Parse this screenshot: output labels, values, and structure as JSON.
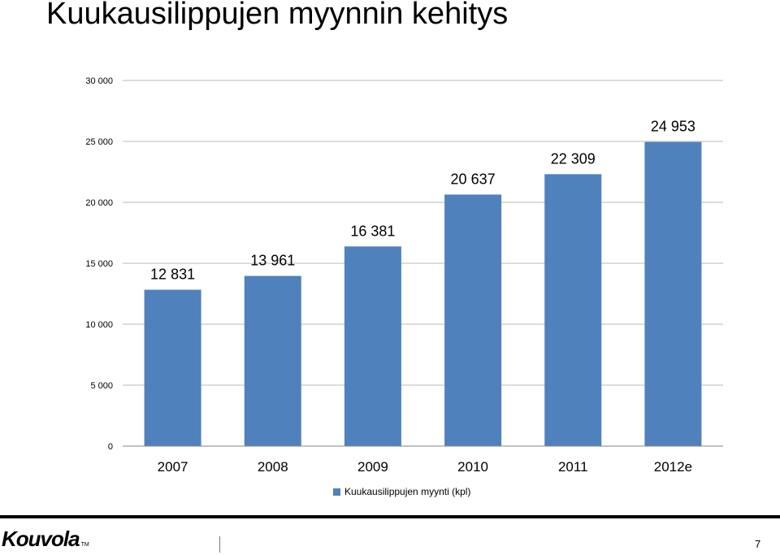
{
  "slide": {
    "title": "Kuukausilippujen myynnin kehitys",
    "page_number": "7",
    "logo_text": "Kouvola",
    "logo_tm": "TM"
  },
  "colors": {
    "bar": "#4f81bd",
    "grid": "#b9b9b9",
    "axis": "#868686",
    "footer_rule": "#000000"
  },
  "chart_data": {
    "type": "bar",
    "categories": [
      "2007",
      "2008",
      "2009",
      "2010",
      "2011",
      "2012e"
    ],
    "series": [
      {
        "name": "Kuukausilippujen myynti (kpl)",
        "values": [
          12831,
          13961,
          16381,
          20637,
          22309,
          24953
        ],
        "labels": [
          "12 831",
          "13 961",
          "16 381",
          "20 637",
          "22 309",
          "24 953"
        ]
      }
    ],
    "y_ticks": [
      0,
      5000,
      10000,
      15000,
      20000,
      25000,
      30000
    ],
    "y_tick_labels": [
      "0",
      "5 000",
      "10 000",
      "15 000",
      "20 000",
      "25 000",
      "30 000"
    ],
    "ylim": [
      0,
      30000
    ],
    "grid": true,
    "legend_position": "bottom"
  }
}
